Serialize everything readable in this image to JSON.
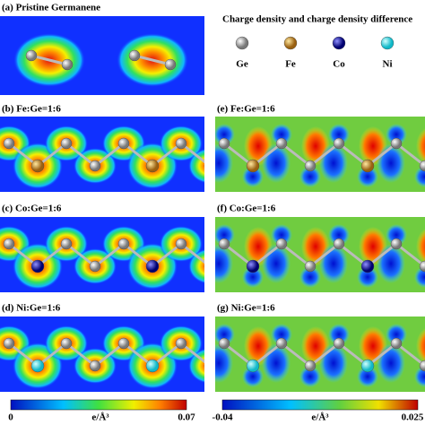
{
  "panels": [
    {
      "label": "(a)  Pristine Germanene"
    },
    {
      "label": "(b)  Fe:Ge=1:6"
    },
    {
      "label": "(c)  Co:Ge=1:6"
    },
    {
      "label": "(d)  Ni:Ge=1:6"
    },
    {
      "label": "(e)  Fe:Ge=1:6"
    },
    {
      "label": "(f)  Co:Ge=1:6"
    },
    {
      "label": "(g)  Ni:Ge=1:6"
    }
  ],
  "legend": {
    "title": "Charge density and charge density difference",
    "items": [
      "Ge",
      "Fe",
      "Co",
      "Ni"
    ]
  },
  "colorbars": [
    {
      "min": 0,
      "unit": "e/Å³",
      "max": 0.07
    },
    {
      "min": -0.04,
      "unit": "e/Å³",
      "max": 0.025
    }
  ]
}
